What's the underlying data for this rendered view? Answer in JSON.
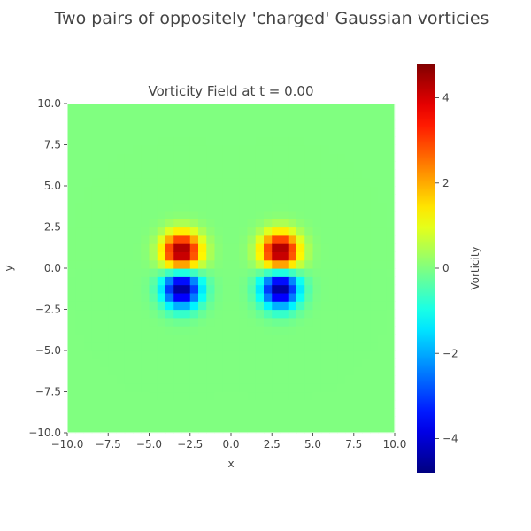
{
  "figure": {
    "suptitle": "Two pairs of oppositely 'charged' Gaussian vorticies"
  },
  "chart_data": {
    "type": "heatmap",
    "title": "Vorticity Field at t = 0.00",
    "xlabel": "x",
    "ylabel": "y",
    "xlim": [
      -10,
      10
    ],
    "ylim": [
      -10,
      10
    ],
    "x_ticks": [
      -10,
      -7.5,
      -5,
      -2.5,
      0,
      2.5,
      5,
      7.5,
      10
    ],
    "y_ticks": [
      -10,
      -7.5,
      -5,
      -2.5,
      0,
      2.5,
      5,
      7.5,
      10
    ],
    "x_tick_labels": [
      "−10.0",
      "−7.5",
      "−5.0",
      "−2.5",
      "0.0",
      "2.5",
      "5.0",
      "7.5",
      "10.0"
    ],
    "y_tick_labels": [
      "−10.0",
      "−7.5",
      "−5.0",
      "−2.5",
      "0.0",
      "2.5",
      "5.0",
      "7.5",
      "10.0"
    ],
    "grid_resolution": 40,
    "colormap": "jet",
    "vmin": -4.8,
    "vmax": 4.8,
    "vortices": [
      {
        "x": -3.0,
        "y": 1.0,
        "strength": 4.8,
        "sigma": 0.8
      },
      {
        "x": -3.0,
        "y": -1.2,
        "strength": -4.8,
        "sigma": 0.8
      },
      {
        "x": 3.0,
        "y": 1.0,
        "strength": 4.8,
        "sigma": 0.8
      },
      {
        "x": 3.0,
        "y": -1.2,
        "strength": -4.8,
        "sigma": 0.8
      }
    ],
    "colorbar": {
      "label": "Vorticity",
      "ticks": [
        4,
        2,
        0,
        -2,
        -4
      ],
      "tick_labels": [
        "4",
        "2",
        "0",
        "−2",
        "−4"
      ]
    },
    "grid": false
  }
}
